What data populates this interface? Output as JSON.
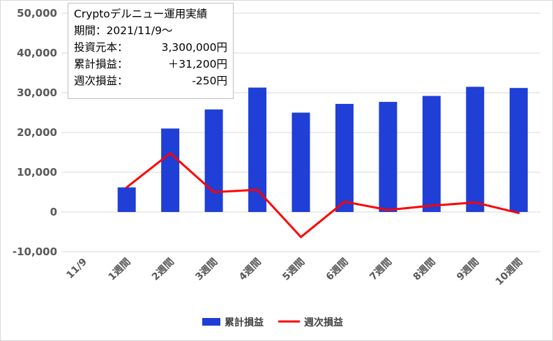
{
  "chart_data": {
    "type": "bar",
    "categories": [
      "11/9",
      "1週間",
      "2週間",
      "3週間",
      "4週間",
      "5週間",
      "6週間",
      "7週間",
      "8週間",
      "9週間",
      "10週間"
    ],
    "series": [
      {
        "name": "累計損益",
        "type": "bar",
        "color": "#1f3fd6",
        "values": [
          null,
          6200,
          21000,
          25800,
          31300,
          25000,
          27200,
          27700,
          29200,
          31500,
          31200
        ]
      },
      {
        "name": "週次損益",
        "type": "line",
        "color": "#ff0000",
        "values": [
          null,
          6200,
          14800,
          5000,
          5600,
          -6300,
          2600,
          500,
          1600,
          2400,
          -250
        ]
      }
    ],
    "ylim": [
      -10000,
      50000
    ],
    "yticks": [
      -10000,
      0,
      10000,
      20000,
      30000,
      40000,
      50000
    ],
    "ytick_labels": [
      "-10,000",
      "0",
      "10,000",
      "20,000",
      "30,000",
      "40,000",
      "50,000"
    ],
    "grid": true,
    "legend_position": "bottom"
  },
  "info_box": {
    "title": "Cryptoデルニュー運用実績",
    "period": "期間：2021/11/9～",
    "investment_label": "投資元本：",
    "investment_value": "3,300,000円",
    "cumulative_label": "累計損益：",
    "cumulative_value": "＋31,200円",
    "weekly_label": "週次損益：",
    "weekly_value": "-250円"
  }
}
